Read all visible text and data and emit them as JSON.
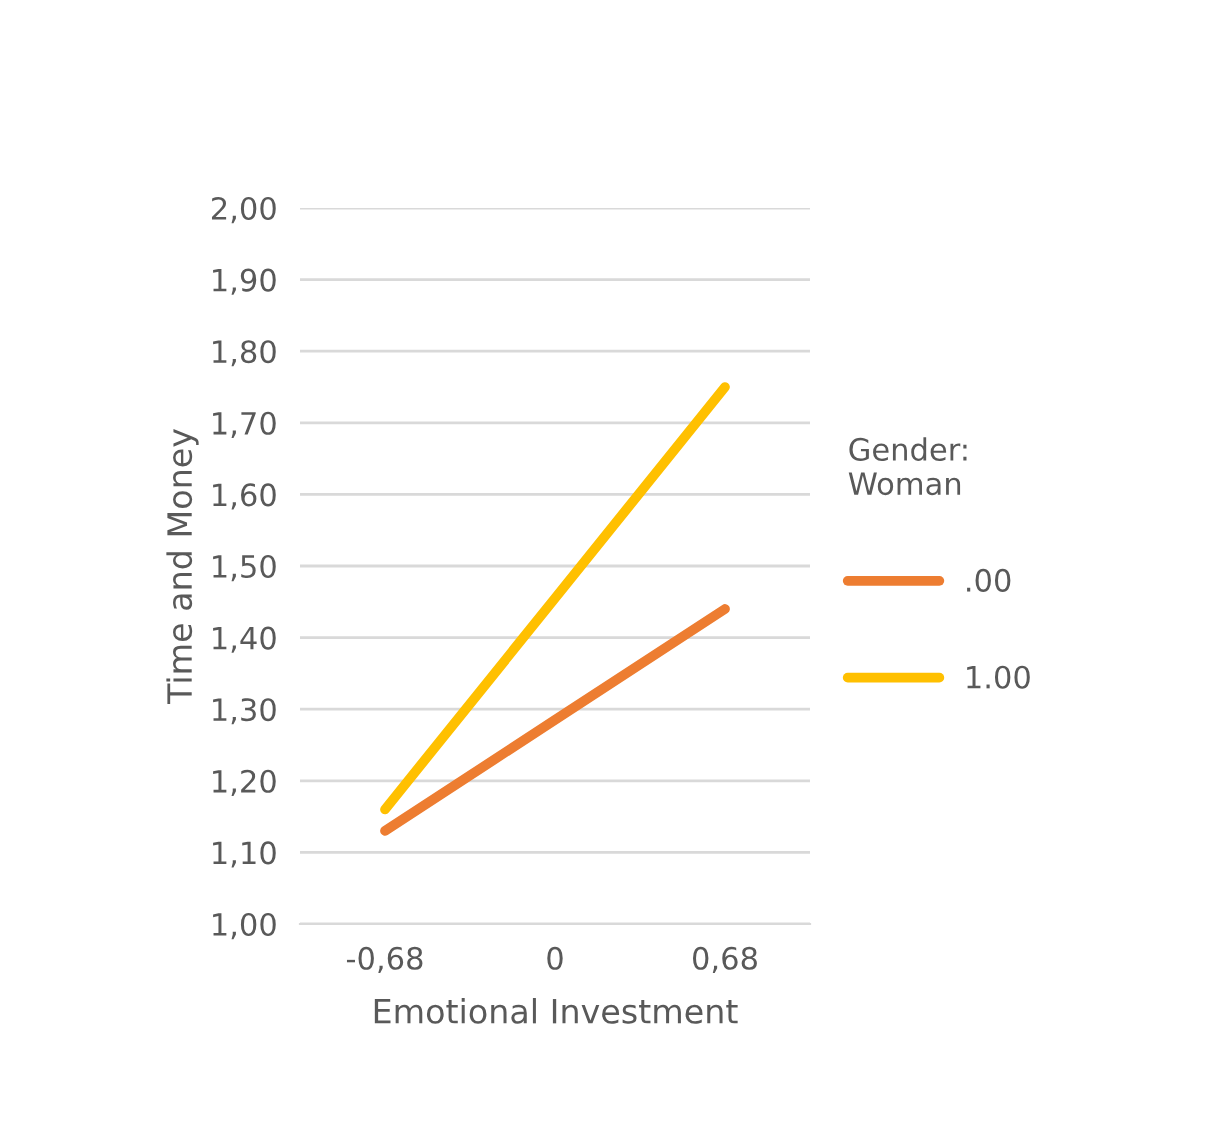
{
  "chart_data": {
    "type": "line",
    "xlabel": "Emotional Investment",
    "ylabel": "Time and Money",
    "legend_title": "Gender:\nWoman",
    "categories": [
      "-0,68",
      "0",
      "0,68"
    ],
    "series": [
      {
        "name": ".00",
        "color": "#ed7d31",
        "values": [
          1.13,
          1.285,
          1.44
        ]
      },
      {
        "name": "1.00",
        "color": "#ffc000",
        "values": [
          1.16,
          1.455,
          1.75
        ]
      }
    ],
    "ylim": [
      1.0,
      2.0
    ],
    "yticks": [
      {
        "value": 1.0,
        "label": "1,00"
      },
      {
        "value": 1.1,
        "label": "1,10"
      },
      {
        "value": 1.2,
        "label": "1,20"
      },
      {
        "value": 1.3,
        "label": "1,30"
      },
      {
        "value": 1.4,
        "label": "1,40"
      },
      {
        "value": 1.5,
        "label": "1,50"
      },
      {
        "value": 1.6,
        "label": "1,60"
      },
      {
        "value": 1.7,
        "label": "1,70"
      },
      {
        "value": 1.8,
        "label": "1,80"
      },
      {
        "value": 1.9,
        "label": "1,90"
      },
      {
        "value": 2.0,
        "label": "2,00"
      }
    ],
    "grid": "y",
    "legend": "right",
    "marker": "none",
    "line_style": "solid"
  }
}
